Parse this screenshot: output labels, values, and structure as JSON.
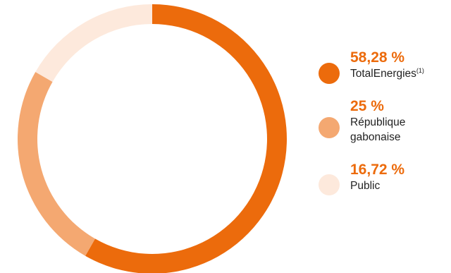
{
  "chart_data": {
    "type": "pie",
    "donut": true,
    "title": "",
    "series": [
      {
        "name": "TotalEnergies",
        "value": 58.28,
        "value_label": "58,28 %",
        "label_lines": [
          "TotalEnergies"
        ],
        "superscript": "(1)",
        "color": "#ec6b0c"
      },
      {
        "name": "République gabonaise",
        "value": 25,
        "value_label": "25 %",
        "label_lines": [
          "République",
          "gabonaise"
        ],
        "superscript": "",
        "color": "#f4a871"
      },
      {
        "name": "Public",
        "value": 16.72,
        "value_label": "16,72 %",
        "label_lines": [
          "Public"
        ],
        "superscript": "",
        "color": "#fde9dc"
      }
    ],
    "start_angle_deg": 0,
    "direction": "clockwise",
    "legend_position": "right"
  }
}
